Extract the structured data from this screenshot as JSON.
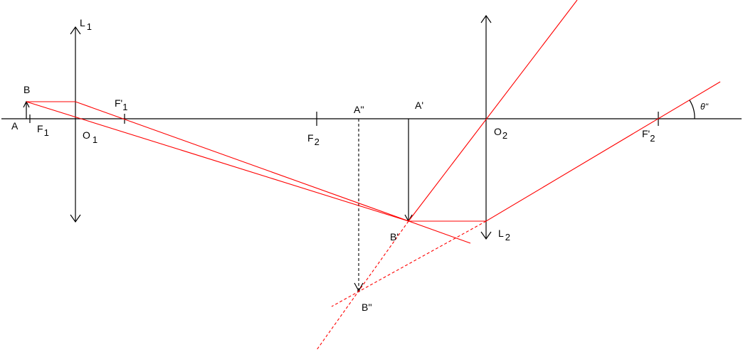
{
  "labels": {
    "L1": {
      "main": "L",
      "sub": "1"
    },
    "L2": {
      "main": "L",
      "sub": "2"
    },
    "A": "A",
    "B": "B",
    "F1": {
      "main": "F",
      "sub": "1"
    },
    "F1p": {
      "main": "F'",
      "sub": "1"
    },
    "O1": {
      "main": "O",
      "sub": "1"
    },
    "F2": {
      "main": "F",
      "sub": "2"
    },
    "A2": "A''",
    "Ap": "A'",
    "O2": {
      "main": "O",
      "sub": "2"
    },
    "F2p": {
      "main": "F'",
      "sub": "2"
    },
    "theta": "θ''",
    "Bp": "B'",
    "B2": "B''"
  },
  "colors": {
    "rays": "#ff0000",
    "construction": "#000000"
  }
}
